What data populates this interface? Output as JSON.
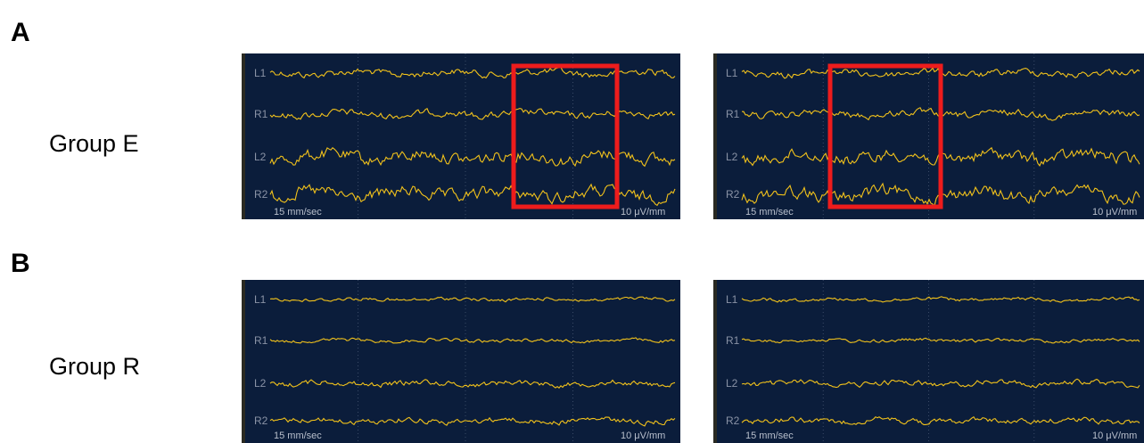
{
  "panels": [
    {
      "label": "A",
      "group": "Group E",
      "screens": [
        {
          "channels": [
            "L1",
            "R1",
            "L2",
            "R2"
          ],
          "speed": "15 mm/sec",
          "gain": "10 μV/mm"
        },
        {
          "channels": [
            "L1",
            "R1",
            "L2",
            "R2"
          ],
          "speed": "15 mm/sec",
          "gain": "10 μV/mm"
        }
      ]
    },
    {
      "label": "B",
      "group": "Group R",
      "screens": [
        {
          "channels": [
            "L1",
            "R1",
            "L2",
            "R2"
          ],
          "speed": "15 mm/sec",
          "gain": "10 μV/mm"
        },
        {
          "channels": [
            "L1",
            "R1",
            "L2",
            "R2"
          ],
          "speed": "15 mm/sec",
          "gain": "10 μV/mm"
        }
      ]
    }
  ]
}
